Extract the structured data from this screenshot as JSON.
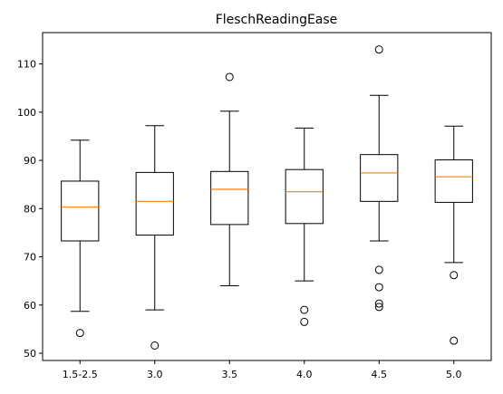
{
  "chart_data": {
    "type": "box",
    "title": "FleschReadingEase",
    "xlabel": "",
    "ylabel": "",
    "categories": [
      "1.5-2.5",
      "3.0",
      "3.5",
      "4.0",
      "4.5",
      "5.0"
    ],
    "ylim": [
      48.5,
      116.5
    ],
    "yticks": [
      50,
      60,
      70,
      80,
      90,
      100,
      110
    ],
    "grid": false,
    "median_color": "#ff7f0e",
    "boxes": [
      {
        "category": "1.5-2.5",
        "whisker_low": 58.7,
        "q1": 73.3,
        "median": 80.3,
        "q3": 85.7,
        "whisker_high": 94.2,
        "fliers": [
          54.2
        ]
      },
      {
        "category": "3.0",
        "whisker_low": 59.0,
        "q1": 74.5,
        "median": 81.5,
        "q3": 87.5,
        "whisker_high": 97.2,
        "fliers": [
          51.6
        ]
      },
      {
        "category": "3.5",
        "whisker_low": 64.0,
        "q1": 76.7,
        "median": 84.0,
        "q3": 87.7,
        "whisker_high": 100.2,
        "fliers": [
          107.3
        ]
      },
      {
        "category": "4.0",
        "whisker_low": 65.0,
        "q1": 76.9,
        "median": 83.5,
        "q3": 88.1,
        "whisker_high": 96.7,
        "fliers": [
          59.0,
          56.5
        ]
      },
      {
        "category": "4.5",
        "whisker_low": 73.3,
        "q1": 81.5,
        "median": 87.4,
        "q3": 91.2,
        "whisker_high": 103.5,
        "fliers": [
          113.0,
          67.3,
          63.7,
          60.3,
          59.6
        ]
      },
      {
        "category": "5.0",
        "whisker_low": 68.8,
        "q1": 81.3,
        "median": 86.6,
        "q3": 90.1,
        "whisker_high": 97.1,
        "fliers": [
          66.2,
          52.6
        ]
      }
    ]
  }
}
